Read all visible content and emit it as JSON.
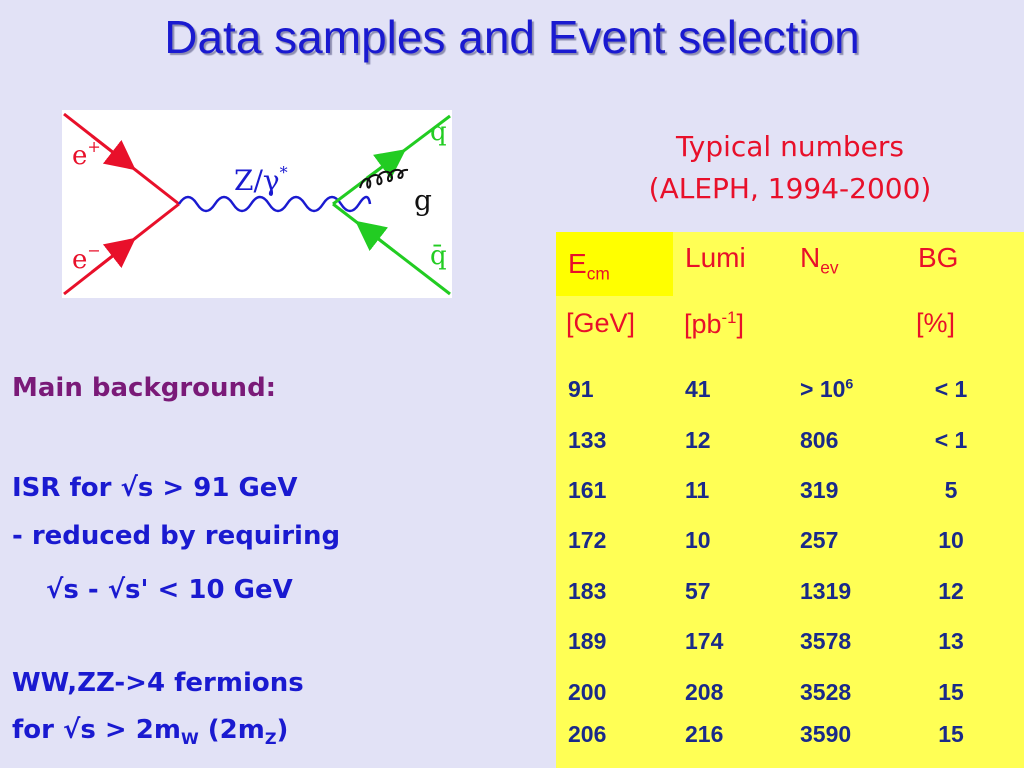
{
  "slide": {
    "title": "Data samples and Event selection",
    "typical_line1": "Typical numbers",
    "typical_line2": "(ALEPH, 1994-2000)"
  },
  "diagram": {
    "label_eplus": "e",
    "label_eplus_sup": "+",
    "label_eminus": "e",
    "label_eminus_sup": "−",
    "label_boson": "Z/γ",
    "label_boson_sup": "*",
    "label_q": "q",
    "label_g": "g",
    "label_qbar": "q̄",
    "colors": {
      "electron": "#e8102a",
      "quark": "#22cc22",
      "boson": "#1a1ad0",
      "gluon": "#111111"
    }
  },
  "notes": {
    "main_background": "Main background:",
    "isr_line": "ISR for √s > 91 GeV",
    "reduced_line": "- reduced by requiring",
    "cut_line": "√s - √s' < 10 GeV",
    "ww_line": "WW,ZZ->4 fermions",
    "for_prefix": "for √s > 2m",
    "for_sub_w": "W",
    "for_mid": " (2m",
    "for_sub_z": "Z",
    "for_suffix": ")"
  },
  "table": {
    "headers": {
      "ecm_main": "E",
      "ecm_sub": "cm",
      "lumi": "Lumi",
      "nev_main": "N",
      "nev_sub": "ev",
      "bg": "BG"
    },
    "units": {
      "ecm": "[GeV]",
      "lumi_main": "[pb",
      "lumi_sup": "-1",
      "lumi_close": "]",
      "bg": "[%]"
    },
    "rows": [
      {
        "ecm": "91",
        "lumi": "41",
        "nev": "> 10",
        "nev_sup": "6",
        "bg": "< 1"
      },
      {
        "ecm": "133",
        "lumi": "12",
        "nev": "806",
        "nev_sup": "",
        "bg": "< 1"
      },
      {
        "ecm": "161",
        "lumi": "11",
        "nev": "319",
        "nev_sup": "",
        "bg": "5"
      },
      {
        "ecm": "172",
        "lumi": "10",
        "nev": "257",
        "nev_sup": "",
        "bg": "10"
      },
      {
        "ecm": "183",
        "lumi": "57",
        "nev": "1319",
        "nev_sup": "",
        "bg": "12"
      },
      {
        "ecm": "189",
        "lumi": "174",
        "nev": "3578",
        "nev_sup": "",
        "bg": "13"
      },
      {
        "ecm": "200",
        "lumi": "208",
        "nev": "3528",
        "nev_sup": "",
        "bg": "15"
      },
      {
        "ecm": "206",
        "lumi": "216",
        "nev": "3590",
        "nev_sup": "",
        "bg": "15"
      }
    ]
  }
}
